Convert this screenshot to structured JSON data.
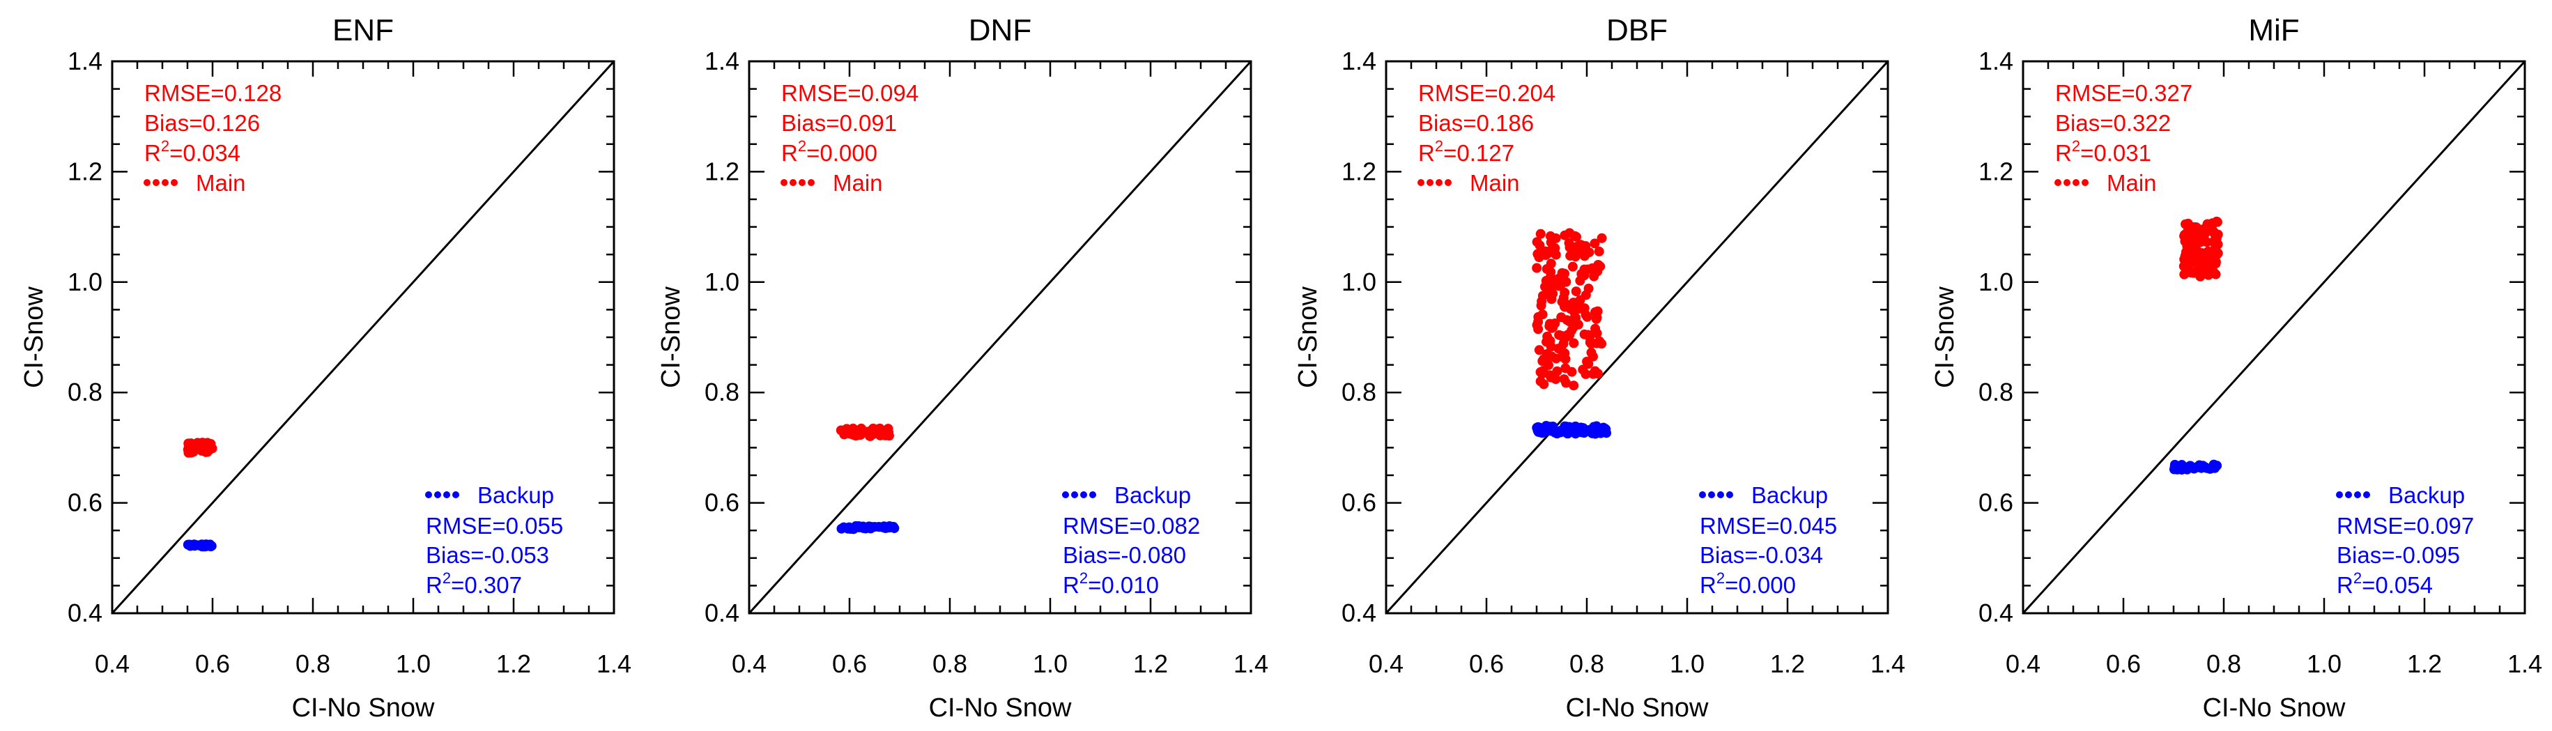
{
  "colors": {
    "main": "#ff0000",
    "backup": "#0000ff",
    "axis": "#000000"
  },
  "chart_data": [
    {
      "type": "scatter",
      "title": "ENF",
      "xlabel": "CI-No Snow",
      "ylabel": "CI-Snow",
      "xlim": [
        0.4,
        1.4
      ],
      "ylim": [
        0.4,
        1.4
      ],
      "x_ticks": [
        "0.4",
        "0.6",
        "0.8",
        "1.0",
        "1.2",
        "1.4"
      ],
      "y_ticks": [
        "0.4",
        "0.6",
        "0.8",
        "1.0",
        "1.2",
        "1.4"
      ],
      "reference_line": "1:1",
      "main_stats": {
        "rmse": "RMSE=0.128",
        "bias": "Bias=0.126",
        "r2_prefix": "R",
        "r2_exp": "2",
        "r2_value": "=0.034",
        "legend": "Main"
      },
      "backup_stats": {
        "legend": "Backup",
        "rmse": "RMSE=0.055",
        "bias": "Bias=-0.053",
        "r2_prefix": "R",
        "r2_exp": "2",
        "r2_value": "=0.307"
      },
      "series": [
        {
          "name": "Main",
          "color": "#ff0000",
          "cluster": {
            "x_range": [
              0.55,
              0.6
            ],
            "y_range": [
              0.69,
              0.71
            ],
            "n": 45
          }
        },
        {
          "name": "Backup",
          "color": "#0000ff",
          "cluster": {
            "x_range": [
              0.55,
              0.6
            ],
            "y_range": [
              0.52,
              0.525
            ],
            "n": 26
          }
        }
      ]
    },
    {
      "type": "scatter",
      "title": "DNF",
      "xlabel": "CI-No Snow",
      "ylabel": "CI-Snow",
      "xlim": [
        0.4,
        1.4
      ],
      "ylim": [
        0.4,
        1.4
      ],
      "x_ticks": [
        "0.4",
        "0.6",
        "0.8",
        "1.0",
        "1.2",
        "1.4"
      ],
      "y_ticks": [
        "0.4",
        "0.6",
        "0.8",
        "1.0",
        "1.2",
        "1.4"
      ],
      "reference_line": "1:1",
      "main_stats": {
        "rmse": "RMSE=0.094",
        "bias": "Bias=0.091",
        "r2_prefix": "R",
        "r2_exp": "2",
        "r2_value": "=0.000",
        "legend": "Main"
      },
      "backup_stats": {
        "legend": "Backup",
        "rmse": "RMSE=0.082",
        "bias": "Bias=-0.080",
        "r2_prefix": "R",
        "r2_exp": "2",
        "r2_value": "=0.010"
      },
      "series": [
        {
          "name": "Main",
          "color": "#ff0000",
          "cluster": {
            "x_range": [
              0.58,
              0.68
            ],
            "y_range": [
              0.72,
              0.735
            ],
            "n": 34
          }
        },
        {
          "name": "Backup",
          "color": "#0000ff",
          "cluster": {
            "x_range": [
              0.58,
              0.69
            ],
            "y_range": [
              0.552,
              0.558
            ],
            "n": 32
          }
        }
      ]
    },
    {
      "type": "scatter",
      "title": "DBF",
      "xlabel": "CI-No Snow",
      "ylabel": "CI-Snow",
      "xlim": [
        0.4,
        1.4
      ],
      "ylim": [
        0.4,
        1.4
      ],
      "x_ticks": [
        "0.4",
        "0.6",
        "0.8",
        "1.0",
        "1.2",
        "1.4"
      ],
      "y_ticks": [
        "0.4",
        "0.6",
        "0.8",
        "1.0",
        "1.2",
        "1.4"
      ],
      "reference_line": "1:1",
      "main_stats": {
        "rmse": "RMSE=0.204",
        "bias": "Bias=0.186",
        "r2_prefix": "R",
        "r2_exp": "2",
        "r2_value": "=0.127",
        "legend": "Main"
      },
      "backup_stats": {
        "legend": "Backup",
        "rmse": "RMSE=0.045",
        "bias": "Bias=-0.034",
        "r2_prefix": "R",
        "r2_exp": "2",
        "r2_value": "=0.000"
      },
      "series": [
        {
          "name": "Main",
          "color": "#ff0000",
          "cluster": {
            "x_range": [
              0.7,
              0.83
            ],
            "y_range": [
              0.81,
              1.09
            ],
            "n": 170
          }
        },
        {
          "name": "Backup",
          "color": "#0000ff",
          "cluster": {
            "x_range": [
              0.7,
              0.84
            ],
            "y_range": [
              0.725,
              0.74
            ],
            "n": 70
          }
        }
      ]
    },
    {
      "type": "scatter",
      "title": "MiF",
      "xlabel": "CI-No Snow",
      "ylabel": "CI-Snow",
      "xlim": [
        0.4,
        1.4
      ],
      "ylim": [
        0.4,
        1.4
      ],
      "x_ticks": [
        "0.4",
        "0.6",
        "0.8",
        "1.0",
        "1.2",
        "1.4"
      ],
      "y_ticks": [
        "0.4",
        "0.6",
        "0.8",
        "1.0",
        "1.2",
        "1.4"
      ],
      "reference_line": "1:1",
      "main_stats": {
        "rmse": "RMSE=0.327",
        "bias": "Bias=0.322",
        "r2_prefix": "R",
        "r2_exp": "2",
        "r2_value": "=0.031",
        "legend": "Main"
      },
      "backup_stats": {
        "legend": "Backup",
        "rmse": "RMSE=0.097",
        "bias": "Bias=-0.095",
        "r2_prefix": "R",
        "r2_exp": "2",
        "r2_value": "=0.054"
      },
      "series": [
        {
          "name": "Main",
          "color": "#ff0000",
          "cluster": {
            "x_range": [
              0.72,
              0.79
            ],
            "y_range": [
              1.01,
              1.11
            ],
            "n": 110
          }
        },
        {
          "name": "Backup",
          "color": "#0000ff",
          "cluster": {
            "x_range": [
              0.7,
              0.79
            ],
            "y_range": [
              0.66,
              0.67
            ],
            "n": 30
          }
        }
      ]
    }
  ]
}
